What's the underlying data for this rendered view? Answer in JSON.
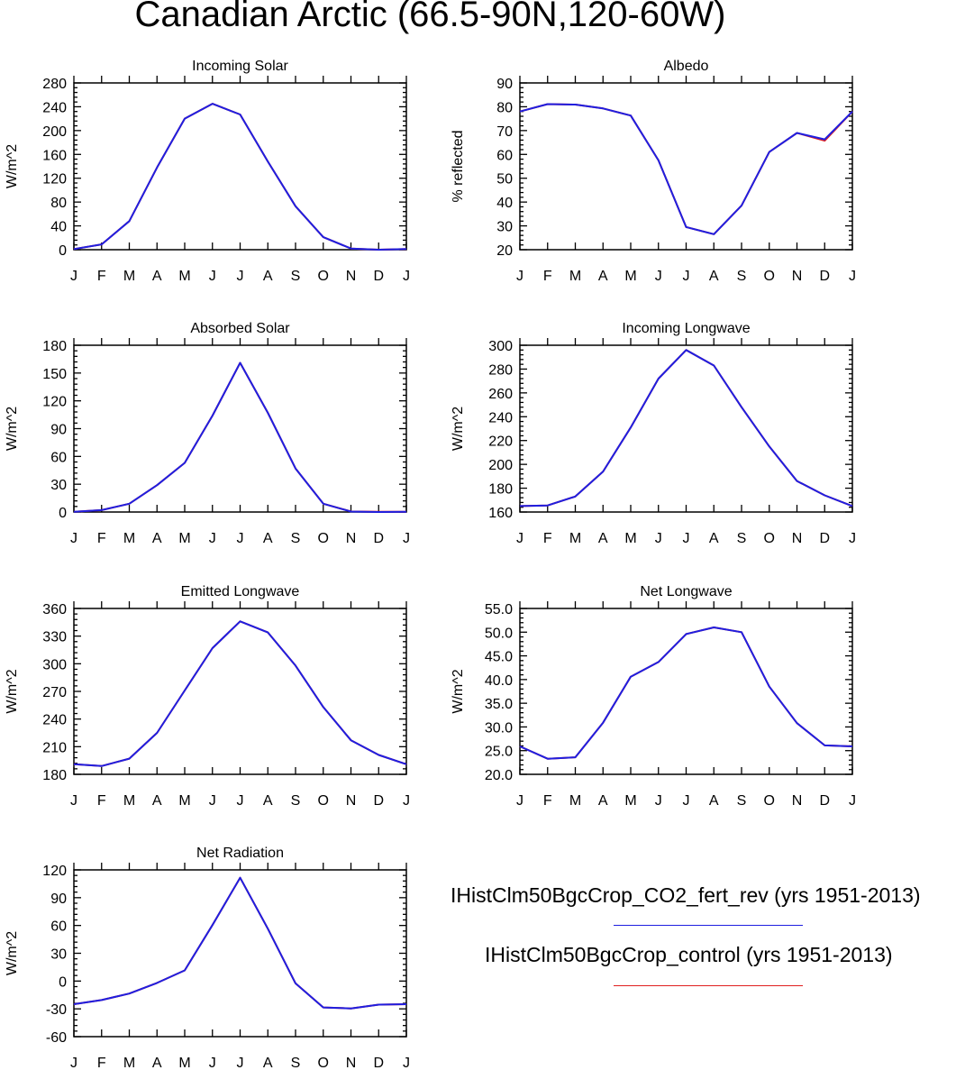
{
  "page_title": "Canadian Arctic (66.5-90N,120-60W)",
  "colors": {
    "case": "#1f1fe0",
    "control": "#e01f1f",
    "axis": "#000000"
  },
  "legend": [
    {
      "label": "IHistClm50BgcCrop_CO2_fert_rev (yrs 1951-2013)",
      "color": "#1f1fe0"
    },
    {
      "label": "IHistClm50BgcCrop_control (yrs 1951-2013)",
      "color": "#e01f1f"
    }
  ],
  "chart_data": [
    {
      "type": "line",
      "title": "Incoming Solar",
      "ylabel": "W/m^2",
      "categories": [
        "J",
        "F",
        "M",
        "A",
        "M",
        "J",
        "J",
        "A",
        "S",
        "O",
        "N",
        "D",
        "J"
      ],
      "ylim": [
        0,
        280
      ],
      "yticks": [
        "0",
        "40",
        "80",
        "120",
        "160",
        "200",
        "240",
        "280"
      ],
      "series": [
        {
          "values": [
            1,
            9,
            48,
            138,
            220,
            245,
            227,
            148,
            73,
            21,
            2,
            0,
            1
          ]
        },
        {
          "values": [
            1,
            9,
            48,
            138,
            220,
            245,
            227,
            148,
            73,
            21,
            2,
            0,
            1
          ]
        }
      ]
    },
    {
      "type": "line",
      "title": "Albedo",
      "ylabel": "% reflected",
      "categories": [
        "J",
        "F",
        "M",
        "A",
        "M",
        "J",
        "J",
        "A",
        "S",
        "O",
        "N",
        "D",
        "J"
      ],
      "ylim": [
        20,
        90
      ],
      "yticks": [
        "20",
        "30",
        "40",
        "50",
        "60",
        "70",
        "80",
        "90"
      ],
      "series": [
        {
          "values": [
            78,
            81.1,
            80.9,
            79.3,
            76.3,
            57.5,
            29.5,
            26.5,
            38.5,
            61,
            69,
            66.3,
            78
          ]
        },
        {
          "values": [
            78,
            81.1,
            80.9,
            79.3,
            76.3,
            57.5,
            29.5,
            26.5,
            38.5,
            61,
            69,
            65.8,
            78
          ]
        }
      ]
    },
    {
      "type": "line",
      "title": "Absorbed Solar",
      "ylabel": "W/m^2",
      "categories": [
        "J",
        "F",
        "M",
        "A",
        "M",
        "J",
        "J",
        "A",
        "S",
        "O",
        "N",
        "D",
        "J"
      ],
      "ylim": [
        0,
        180
      ],
      "yticks": [
        "0",
        "30",
        "60",
        "90",
        "120",
        "150",
        "180"
      ],
      "series": [
        {
          "values": [
            0.2,
            2,
            9,
            29,
            53,
            104,
            161,
            107,
            47,
            9,
            0.5,
            0,
            0.2
          ]
        },
        {
          "values": [
            0.2,
            2,
            9,
            29,
            53,
            104,
            161,
            107,
            47,
            9,
            0.6,
            0.2,
            0.3
          ]
        }
      ]
    },
    {
      "type": "line",
      "title": "Incoming Longwave",
      "ylabel": "W/m^2",
      "categories": [
        "J",
        "F",
        "M",
        "A",
        "M",
        "J",
        "J",
        "A",
        "S",
        "O",
        "N",
        "D",
        "J"
      ],
      "ylim": [
        160,
        300
      ],
      "yticks": [
        "160",
        "180",
        "200",
        "220",
        "240",
        "260",
        "280",
        "300"
      ],
      "series": [
        {
          "values": [
            165,
            165.5,
            173,
            194,
            231,
            272,
            296,
            283,
            248,
            215,
            186,
            174,
            165
          ]
        },
        {
          "values": [
            165,
            165.5,
            173,
            194,
            231,
            272,
            296,
            283,
            248,
            215,
            186,
            174,
            165
          ]
        }
      ]
    },
    {
      "type": "line",
      "title": "Emitted Longwave",
      "ylabel": "W/m^2",
      "categories": [
        "J",
        "F",
        "M",
        "A",
        "M",
        "J",
        "J",
        "A",
        "S",
        "O",
        "N",
        "D",
        "J"
      ],
      "ylim": [
        180,
        360
      ],
      "yticks": [
        "180",
        "210",
        "240",
        "270",
        "300",
        "330",
        "360"
      ],
      "series": [
        {
          "values": [
            191,
            189,
            197,
            225,
            271,
            317,
            346,
            334,
            298,
            253,
            217,
            201,
            191
          ]
        },
        {
          "values": [
            191,
            189,
            197,
            225,
            271,
            317,
            346,
            334,
            298,
            253,
            217,
            201,
            191
          ]
        }
      ]
    },
    {
      "type": "line",
      "title": "Net Longwave",
      "ylabel": "W/m^2",
      "categories": [
        "J",
        "F",
        "M",
        "A",
        "M",
        "J",
        "J",
        "A",
        "S",
        "O",
        "N",
        "D",
        "J"
      ],
      "ylim": [
        20,
        55
      ],
      "yticks": [
        "20.0",
        "25.0",
        "30.0",
        "35.0",
        "40.0",
        "45.0",
        "50.0",
        "55.0"
      ],
      "series": [
        {
          "values": [
            25.9,
            23.3,
            23.6,
            30.9,
            40.6,
            43.7,
            49.6,
            51,
            50,
            38.5,
            30.8,
            26.1,
            25.9
          ]
        },
        {
          "values": [
            25.9,
            23.3,
            23.6,
            30.9,
            40.6,
            43.7,
            49.6,
            51,
            50,
            38.5,
            30.8,
            26.1,
            25.9
          ]
        }
      ]
    },
    {
      "type": "line",
      "title": "Net Radiation",
      "ylabel": "W/m^2",
      "categories": [
        "J",
        "F",
        "M",
        "A",
        "M",
        "J",
        "J",
        "A",
        "S",
        "O",
        "N",
        "D",
        "J"
      ],
      "ylim": [
        -60,
        120
      ],
      "yticks": [
        "-60",
        "-30",
        "0",
        "30",
        "60",
        "90",
        "120"
      ],
      "series": [
        {
          "values": [
            -25,
            -20.5,
            -13.5,
            -2,
            11.5,
            60.5,
            111.5,
            56.5,
            -2.5,
            -28.5,
            -29.5,
            -25.5,
            -25
          ]
        },
        {
          "values": [
            -25,
            -20.5,
            -13.5,
            -2,
            11.5,
            60.5,
            111.5,
            56.5,
            -2.5,
            -28.5,
            -29.5,
            -25.5,
            -25
          ]
        }
      ]
    }
  ]
}
